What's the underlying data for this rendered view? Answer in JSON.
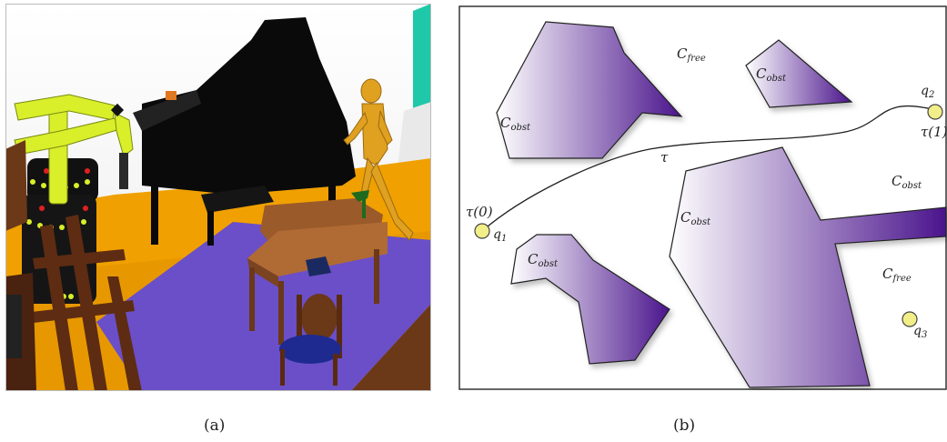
{
  "captions": {
    "a": "(a)",
    "b": "(b)"
  },
  "diagram": {
    "region_labels": {
      "cobst_1": "C",
      "cobst_1_sub": "obst",
      "cfree_1": "C",
      "cfree_1_sub": "free",
      "cobst_2": "C",
      "cobst_2_sub": "obst",
      "cobst_3": "C",
      "cobst_3_sub": "obst",
      "cobst_4": "C",
      "cobst_4_sub": "obst",
      "cobst_5": "C",
      "cobst_5_sub": "obst",
      "cfree_2": "C",
      "cfree_2_sub": "free"
    },
    "path_label": "τ",
    "tau0": "τ(0)",
    "tau1": "τ(1)",
    "points": {
      "q1": "q",
      "q1_sub": "1",
      "q2": "q",
      "q2_sub": "2",
      "q3": "q",
      "q3_sub": "3"
    }
  },
  "colors": {
    "obstacle_light": "#ffffff",
    "obstacle_dark": "#4a148c",
    "config_point": "#f2ee88",
    "floor_orange": "#f0a000",
    "rug_purple": "#6a4fc8",
    "robot_yellow": "#d8ef2a",
    "piano_black": "#0a0a0a",
    "mannequin": "#e0a020",
    "wall_teal": "#1fc8a8",
    "wood": "#8a4a24"
  }
}
